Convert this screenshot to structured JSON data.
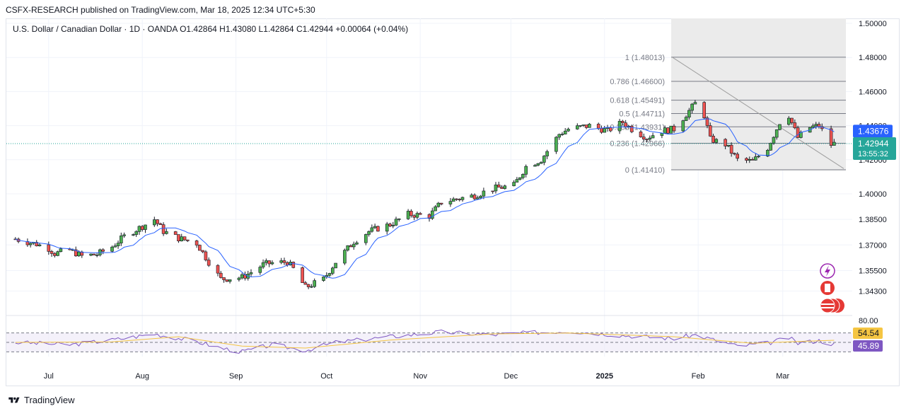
{
  "header": {
    "publisher": "CSFX-RESEARCH published on TradingView.com, Mar 18, 2025 12:34 UTC+5:30"
  },
  "legend": {
    "symbol": "U.S. Dollar / Canadian Dollar · 1D · OANDA",
    "open": "O1.42864",
    "high": "H1.43080",
    "low": "L1.42864",
    "close": "C1.42944",
    "change": "+0.00064 (+0.04%)"
  },
  "footer": {
    "brand": "TradingView"
  },
  "colors": {
    "up": "#26a69a",
    "up_fill": "#4caf50",
    "down": "#ef5350",
    "ma": "#2962ff",
    "rsi": "#7e57c2",
    "rsi_ma": "#f5c542",
    "fib_zone": "#ebebeb"
  },
  "chart_data": {
    "type": "candlestick",
    "ylim": [
      1.335,
      1.5
    ],
    "y_ticks": [
      "1.50000",
      "1.48000",
      "1.46000",
      "1.44000",
      "1.42000",
      "1.40000",
      "1.38500",
      "1.37000",
      "1.35500",
      "1.34300"
    ],
    "x_ticks": [
      "Jul",
      "Aug",
      "Sep",
      "Oct",
      "Nov",
      "Dec",
      "2025",
      "Feb",
      "Mar"
    ],
    "close_path": [
      [
        "2024-06-20",
        1.3735
      ],
      [
        "2024-06-27",
        1.3705
      ],
      [
        "2024-07-01",
        1.368
      ],
      [
        "2024-07-03",
        1.365
      ],
      [
        "2024-07-08",
        1.367
      ],
      [
        "2024-07-12",
        1.3635
      ],
      [
        "2024-07-17",
        1.3645
      ],
      [
        "2024-07-22",
        1.369
      ],
      [
        "2024-07-26",
        1.375
      ],
      [
        "2024-07-31",
        1.38
      ],
      [
        "2024-08-05",
        1.385
      ],
      [
        "2024-08-08",
        1.378
      ],
      [
        "2024-08-13",
        1.374
      ],
      [
        "2024-08-19",
        1.371
      ],
      [
        "2024-08-23",
        1.36
      ],
      [
        "2024-08-27",
        1.35
      ],
      [
        "2024-09-03",
        1.351
      ],
      [
        "2024-09-06",
        1.354
      ],
      [
        "2024-09-10",
        1.3585
      ],
      [
        "2024-09-13",
        1.3595
      ],
      [
        "2024-09-18",
        1.36
      ],
      [
        "2024-09-20",
        1.356
      ],
      [
        "2024-09-24",
        1.345
      ],
      [
        "2024-09-30",
        1.35
      ],
      [
        "2024-10-04",
        1.36
      ],
      [
        "2024-10-10",
        1.372
      ],
      [
        "2024-10-15",
        1.378
      ],
      [
        "2024-10-22",
        1.382
      ],
      [
        "2024-10-28",
        1.388
      ],
      [
        "2024-11-04",
        1.387
      ],
      [
        "2024-11-08",
        1.395
      ],
      [
        "2024-11-13",
        1.397
      ],
      [
        "2024-11-19",
        1.399
      ],
      [
        "2024-11-25",
        1.403
      ],
      [
        "2024-12-02",
        1.405
      ],
      [
        "2024-12-06",
        1.416
      ],
      [
        "2024-12-11",
        1.42
      ],
      [
        "2024-12-17",
        1.435
      ],
      [
        "2024-12-20",
        1.438
      ],
      [
        "2024-12-27",
        1.44
      ],
      [
        "2025-01-02",
        1.437
      ],
      [
        "2025-01-07",
        1.442
      ],
      [
        "2025-01-10",
        1.438
      ],
      [
        "2025-01-15",
        1.433
      ],
      [
        "2025-01-20",
        1.437
      ],
      [
        "2025-01-24",
        1.438
      ],
      [
        "2025-01-31",
        1.453
      ],
      [
        "2025-02-03",
        1.446
      ],
      [
        "2025-02-05",
        1.432
      ],
      [
        "2025-02-10",
        1.429
      ],
      [
        "2025-02-14",
        1.42
      ],
      [
        "2025-02-19",
        1.419
      ],
      [
        "2025-02-24",
        1.427
      ],
      [
        "2025-02-28",
        1.442
      ],
      [
        "2025-03-03",
        1.446
      ],
      [
        "2025-03-06",
        1.433
      ],
      [
        "2025-03-10",
        1.439
      ],
      [
        "2025-03-13",
        1.44
      ],
      [
        "2025-03-17",
        1.4288
      ],
      [
        "2025-03-18",
        1.42944
      ]
    ],
    "series": [
      {
        "name": "MA",
        "value": "1.43676"
      },
      {
        "name": "Price",
        "value": "1.42944",
        "countdown": "13:55:32"
      }
    ],
    "fibonacci": [
      {
        "label": "1 (1.48013)",
        "value": 1.48013
      },
      {
        "label": "0.786 (1.46600)",
        "value": 1.466
      },
      {
        "label": "0.618 (1.45491)",
        "value": 1.45491
      },
      {
        "label": "0.5 (1.44711)",
        "value": 1.44711
      },
      {
        "label": "0.382 (1.43931)",
        "value": 1.43931
      },
      {
        "label": "0.236 (1.42966)",
        "value": 1.42966
      },
      {
        "label": "0 (1.41410)",
        "value": 1.4141
      }
    ],
    "fib_range": [
      "2025-01-01",
      "2025-03-20"
    ],
    "trendline": [
      [
        "2025-01-31",
        1.48
      ],
      [
        "2025-03-20",
        1.4148
      ]
    ],
    "rsi": {
      "levels": [
        "80.00",
        "54.54",
        "45.89"
      ],
      "rsi_value": "45.89",
      "ma_value": "54.54",
      "ylim": [
        20,
        80
      ],
      "rsi_path": [
        [
          "2024-06-20",
          50
        ],
        [
          "2024-07-08",
          45
        ],
        [
          "2024-07-22",
          55
        ],
        [
          "2024-08-05",
          68
        ],
        [
          "2024-08-19",
          52
        ],
        [
          "2024-08-27",
          38
        ],
        [
          "2024-09-03",
          30
        ],
        [
          "2024-09-13",
          45
        ],
        [
          "2024-09-24",
          33
        ],
        [
          "2024-10-04",
          50
        ],
        [
          "2024-10-22",
          62
        ],
        [
          "2024-11-08",
          72
        ],
        [
          "2024-11-25",
          66
        ],
        [
          "2024-12-06",
          70
        ],
        [
          "2024-12-20",
          74
        ],
        [
          "2025-01-07",
          65
        ],
        [
          "2025-01-24",
          58
        ],
        [
          "2025-01-31",
          66
        ],
        [
          "2025-02-14",
          42
        ],
        [
          "2025-02-24",
          48
        ],
        [
          "2025-03-03",
          60
        ],
        [
          "2025-03-06",
          48
        ],
        [
          "2025-03-13",
          54
        ],
        [
          "2025-03-18",
          45.89
        ]
      ],
      "ma_path": [
        [
          "2024-06-20",
          50
        ],
        [
          "2024-07-22",
          51
        ],
        [
          "2024-08-13",
          62
        ],
        [
          "2024-09-03",
          42
        ],
        [
          "2024-09-24",
          38
        ],
        [
          "2024-10-22",
          55
        ],
        [
          "2024-11-25",
          68
        ],
        [
          "2024-12-20",
          70
        ],
        [
          "2025-01-24",
          62
        ],
        [
          "2025-02-19",
          48
        ],
        [
          "2025-03-06",
          52
        ],
        [
          "2025-03-18",
          54.54
        ]
      ]
    }
  }
}
